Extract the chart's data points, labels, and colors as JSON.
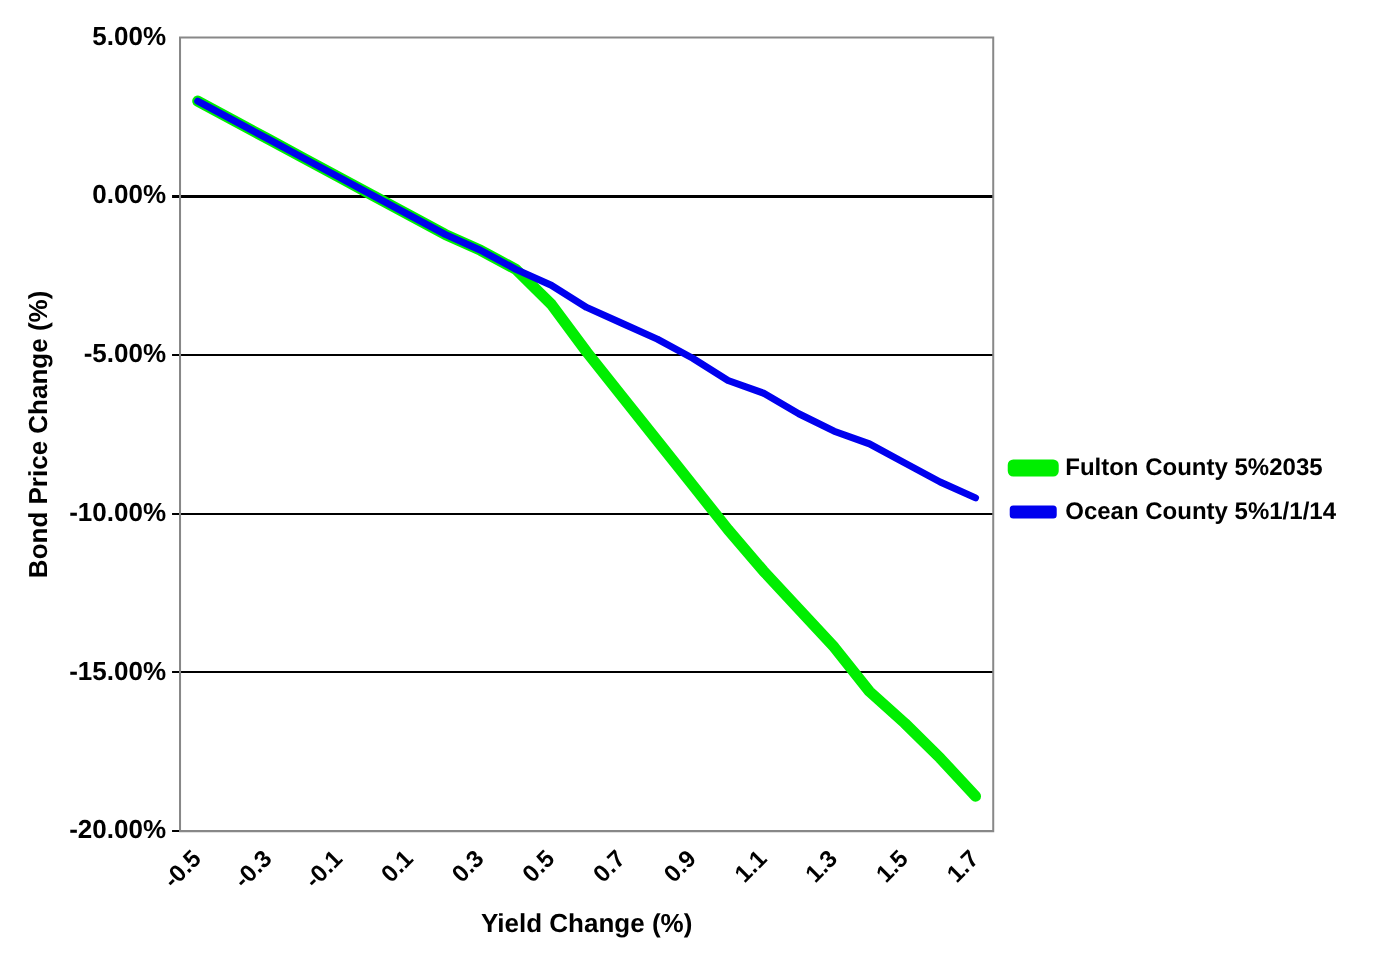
{
  "chart_data": {
    "type": "line",
    "xlabel": "Yield Change (%)",
    "ylabel": "Bond Price Change (%)",
    "categories": [
      "-0.5",
      null,
      "-0.3",
      null,
      "-0.1",
      null,
      "0.1",
      null,
      "0.3",
      null,
      "0.5",
      null,
      "0.7",
      null,
      "0.9",
      null,
      "1.1",
      null,
      "1.3",
      null,
      "1.5",
      null,
      "1.7"
    ],
    "series": [
      {
        "name": "Fulton County 5%2035",
        "color": "#00ee00",
        "values": [
          3.0,
          2.4,
          1.8,
          1.2,
          0.6,
          0.0,
          -0.6,
          -1.2,
          -1.7,
          -2.3,
          -3.4,
          -4.9,
          -6.3,
          -7.7,
          -9.1,
          -10.5,
          -11.8,
          -13.0,
          -14.2,
          -15.6,
          -16.6,
          -17.7,
          -18.9
        ]
      },
      {
        "name": "Ocean County 5%1/1/14",
        "color": "#0000ee",
        "values": [
          3.0,
          2.4,
          1.8,
          1.2,
          0.6,
          0.0,
          -0.6,
          -1.2,
          -1.7,
          -2.3,
          -2.8,
          -3.5,
          -4.0,
          -4.5,
          -5.1,
          -5.8,
          -6.2,
          -6.85,
          -7.4,
          -7.8,
          -8.4,
          -9.0,
          -9.5
        ]
      }
    ],
    "ylim": [
      -20,
      5
    ],
    "yticks": [
      {
        "value": 5,
        "label": "5.00%"
      },
      {
        "value": 0,
        "label": "0.00%"
      },
      {
        "value": -5,
        "label": "-5.00%"
      },
      {
        "value": -10,
        "label": "-10.00%"
      },
      {
        "value": -15,
        "label": "-15.00%"
      },
      {
        "value": -20,
        "label": "-20.00%"
      }
    ],
    "grid": "y",
    "legend": "right",
    "marker": "none",
    "line_style": "solid"
  }
}
